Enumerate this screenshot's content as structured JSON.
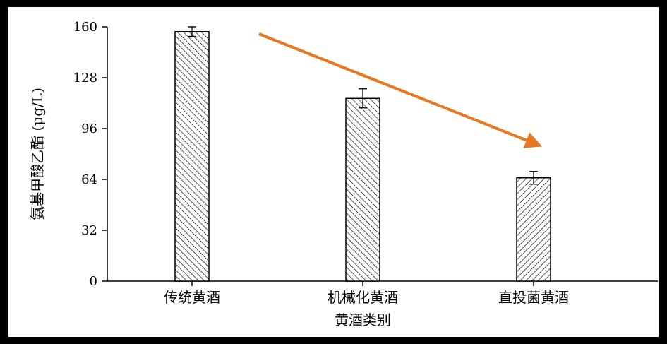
{
  "chart_data": {
    "type": "bar",
    "title": "",
    "xlabel": "黄酒类别",
    "ylabel": "氨基甲酸乙酯 (μg/L)",
    "categories": [
      "传统黄酒",
      "机械化黄酒",
      "直投菌黄酒"
    ],
    "series": [
      {
        "values": [
          157,
          115,
          65
        ],
        "errors": [
          3,
          6,
          4
        ],
        "pattern": [
          "hatch-right",
          "hatch-right",
          "hatch-left"
        ]
      }
    ],
    "ylim": [
      0,
      160
    ],
    "yticks": [
      0,
      32,
      64,
      96,
      128,
      160
    ],
    "grid": false,
    "legend": "none",
    "annotation": {
      "type": "trend-arrow",
      "color": "#E87722"
    },
    "colors": {
      "bar_fill": "#ffffff",
      "bar_stroke": "#000000",
      "hatch": "#000000",
      "arrow": "#E87722"
    }
  }
}
